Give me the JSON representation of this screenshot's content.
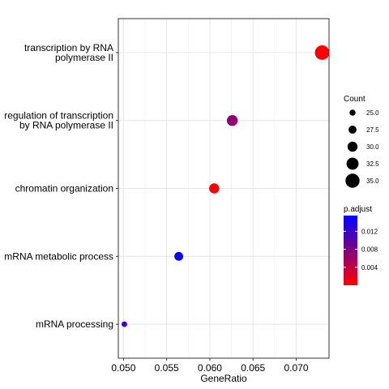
{
  "chart_data": {
    "type": "scatter",
    "title": "",
    "xlabel": "GeneRatio",
    "ylabel": "",
    "xlim": [
      0.0494,
      0.0738
    ],
    "x_ticks": [
      0.05,
      0.055,
      0.06,
      0.065,
      0.07
    ],
    "x_tick_labels": [
      "0.050",
      "0.055",
      "0.060",
      "0.065",
      "0.070"
    ],
    "grid": true,
    "categories_top_to_bottom": [
      [
        "transcription by RNA",
        "polymerase II"
      ],
      [
        "regulation of transcription",
        "by RNA polymerase II"
      ],
      [
        "chromatin organization"
      ],
      [
        "mRNA metabolic process"
      ],
      [
        "mRNA processing"
      ]
    ],
    "points": [
      {
        "term": "transcription by RNA polymerase II",
        "gene_ratio": 0.073,
        "count": 35.5,
        "p_adjust": 0.0002
      },
      {
        "term": "regulation of transcription by RNA polymerase II",
        "gene_ratio": 0.0626,
        "count": 31.0,
        "p_adjust": 0.0068
      },
      {
        "term": "chromatin organization",
        "gene_ratio": 0.0605,
        "count": 30.0,
        "p_adjust": 0.0003
      },
      {
        "term": "mRNA metabolic process",
        "gene_ratio": 0.0564,
        "count": 28.5,
        "p_adjust": 0.015
      },
      {
        "term": "mRNA processing",
        "gene_ratio": 0.0501,
        "count": 24.5,
        "p_adjust": 0.0118
      }
    ],
    "legend_size": {
      "title": "Count",
      "breaks": [
        25.0,
        27.5,
        30.0,
        32.5,
        35.0
      ],
      "labels": [
        "25.0",
        "27.5",
        "30.0",
        "32.5",
        "35.0"
      ],
      "position": "right"
    },
    "legend_color": {
      "title": "p.adjust",
      "range": [
        0.0,
        0.0155
      ],
      "breaks": [
        0.004,
        0.008,
        0.012
      ],
      "labels": [
        "0.004",
        "0.008",
        "0.012"
      ],
      "low_color": "#FF0000",
      "high_color": "#0000FF",
      "position": "right"
    }
  }
}
